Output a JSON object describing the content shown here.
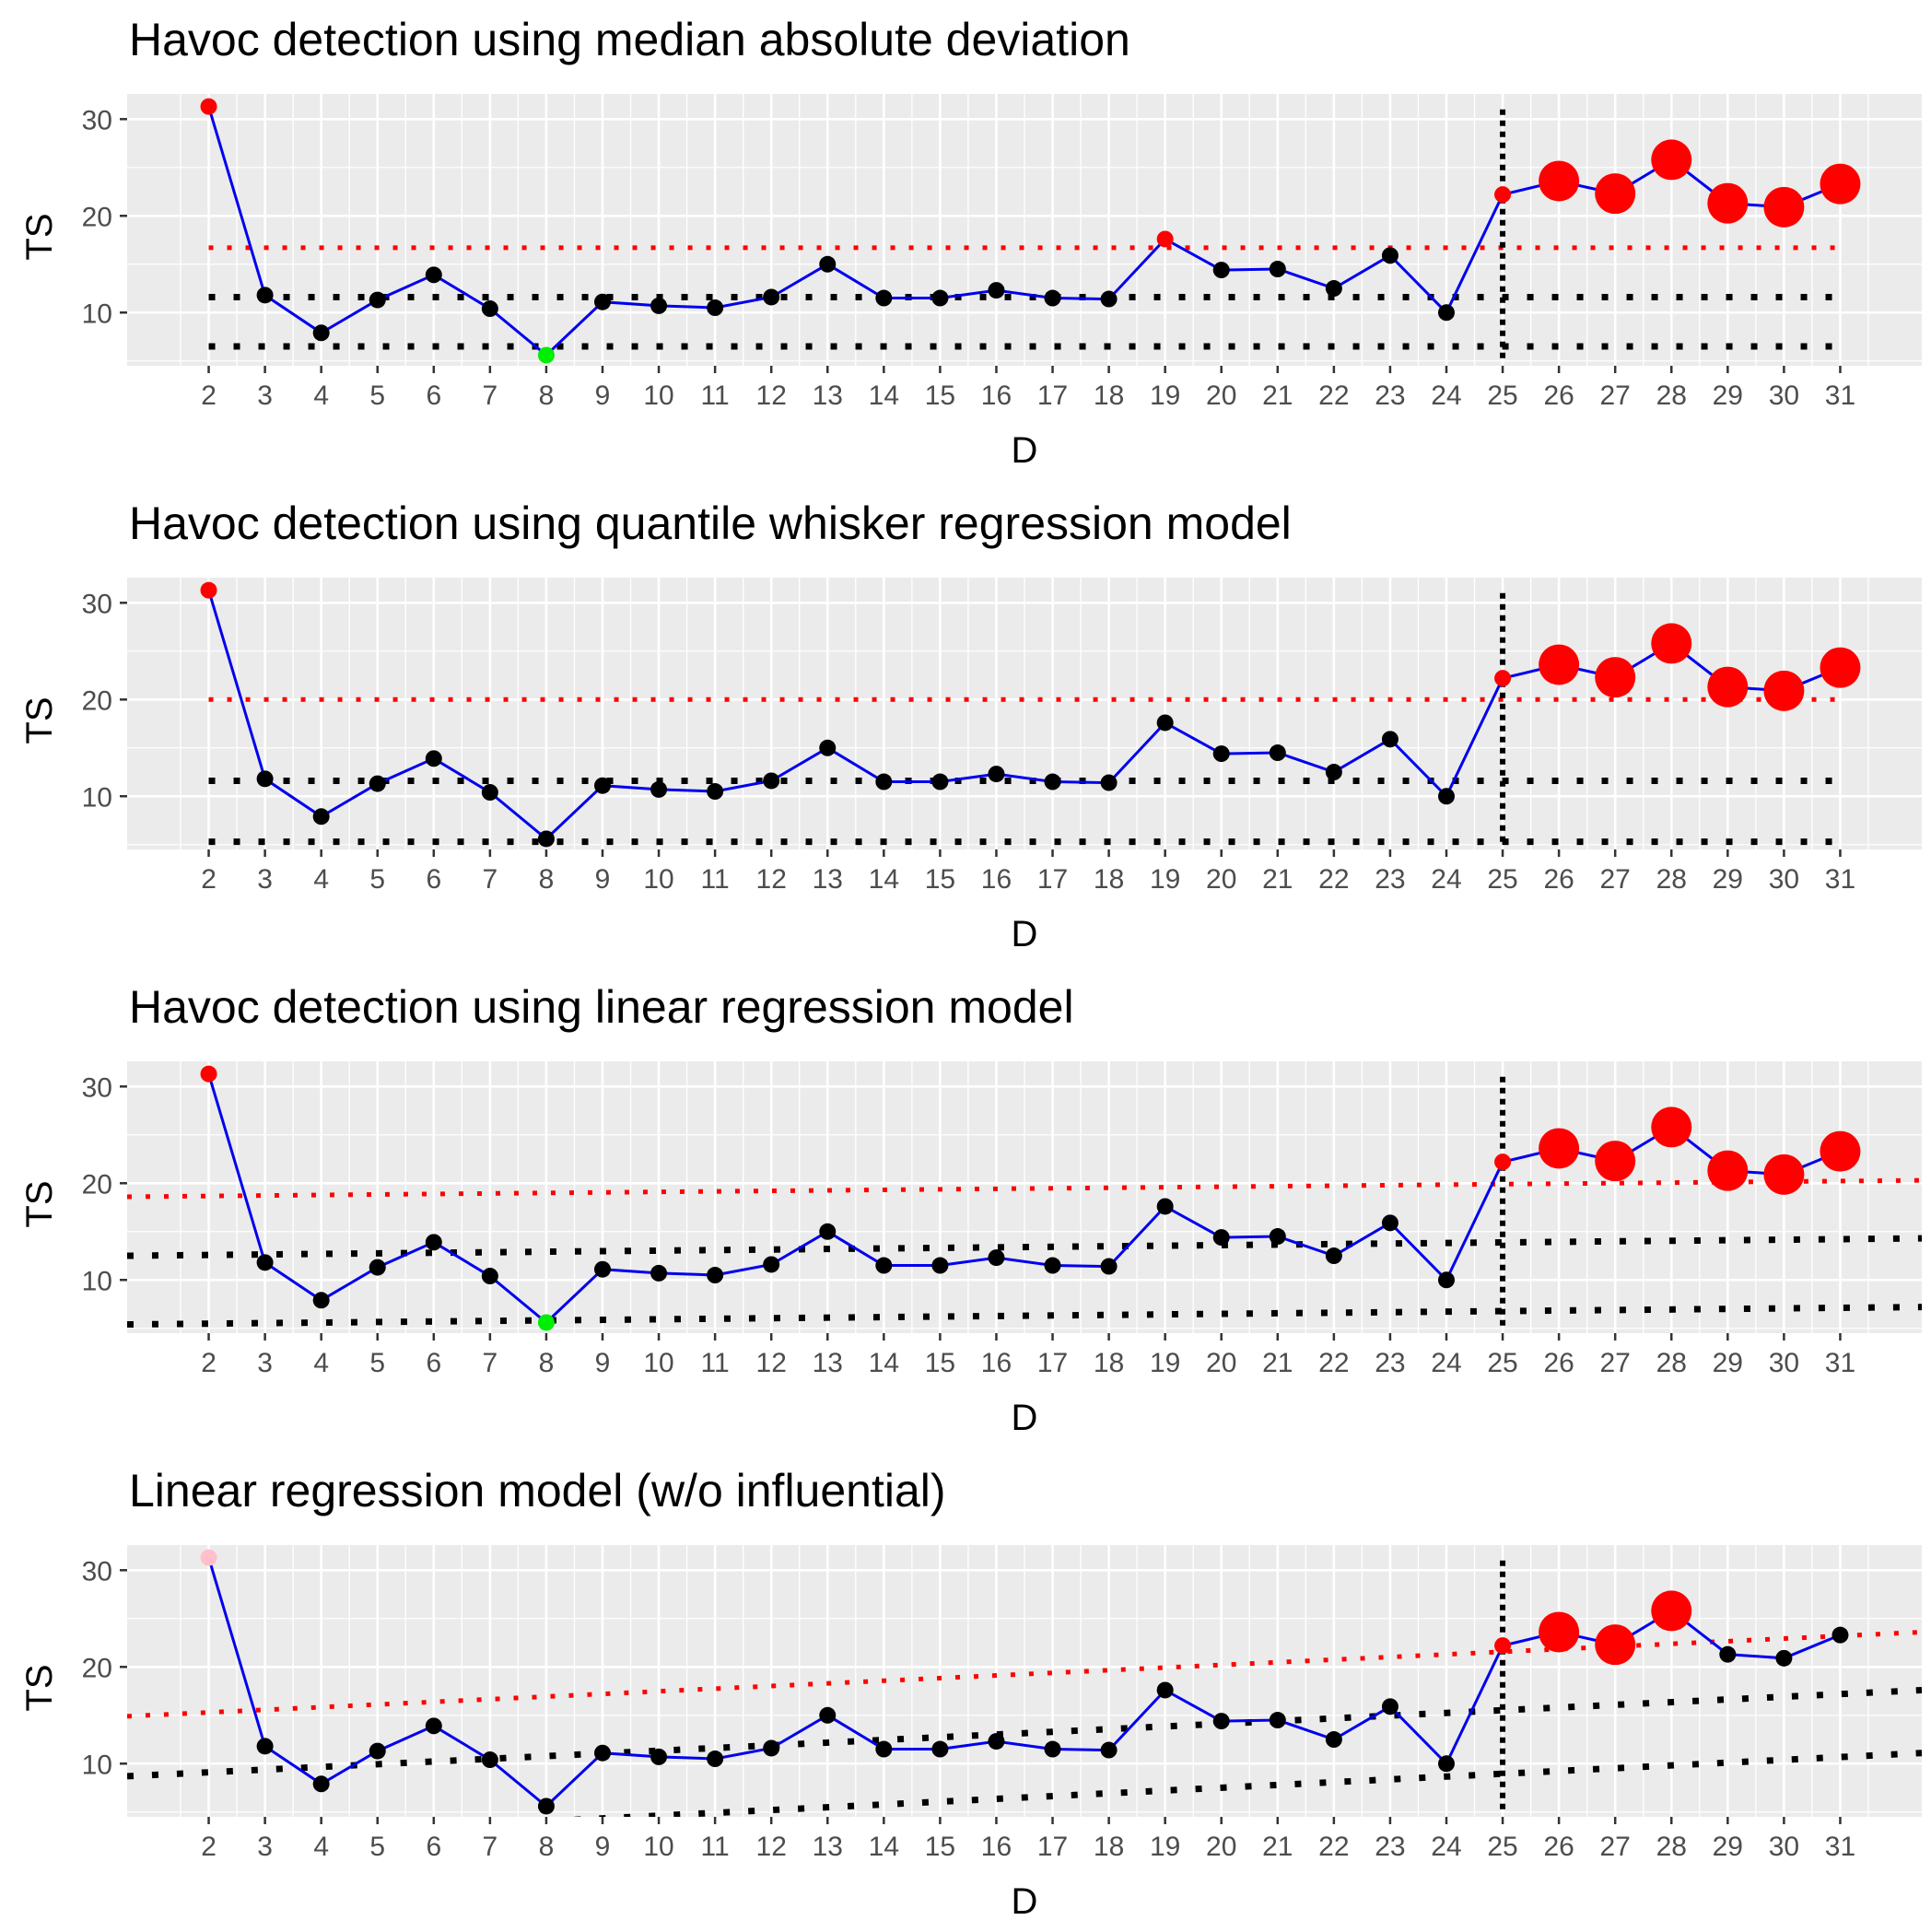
{
  "chart_data": [
    {
      "type": "line",
      "title": "Havoc detection using median absolute deviation",
      "xlabel": "D",
      "ylabel": "TS",
      "x_ticks": [
        2,
        3,
        4,
        5,
        6,
        7,
        8,
        9,
        10,
        11,
        12,
        13,
        14,
        15,
        16,
        17,
        18,
        19,
        20,
        21,
        22,
        23,
        24,
        25,
        26,
        27,
        28,
        29,
        30,
        31
      ],
      "y_ticks": [
        10,
        20,
        30
      ],
      "xlim": [
        0.55,
        32.45
      ],
      "ylim": [
        4.5,
        32.6
      ],
      "grid": true,
      "x": [
        2,
        3,
        4,
        5,
        6,
        7,
        8,
        9,
        10,
        11,
        12,
        13,
        14,
        15,
        16,
        17,
        18,
        19,
        20,
        21,
        22,
        23,
        24,
        25,
        26,
        27,
        28,
        29,
        30,
        31
      ],
      "y": [
        31.3,
        11.8,
        7.9,
        11.3,
        13.9,
        10.4,
        5.6,
        11.1,
        10.7,
        10.5,
        11.6,
        15.0,
        11.5,
        11.5,
        12.3,
        11.5,
        11.4,
        17.6,
        14.4,
        14.5,
        12.5,
        15.9,
        10.0,
        22.2,
        23.6,
        22.3,
        25.8,
        21.3,
        20.9,
        23.3
      ],
      "point_colors": [
        "red",
        "black",
        "black",
        "black",
        "black",
        "black",
        "green",
        "black",
        "black",
        "black",
        "black",
        "black",
        "black",
        "black",
        "black",
        "black",
        "black",
        "red",
        "black",
        "black",
        "black",
        "black",
        "black",
        "red",
        "red",
        "red",
        "red",
        "red",
        "red",
        "red"
      ],
      "large_points_x": [
        26,
        27,
        28,
        29,
        30,
        31
      ],
      "reference_lines": [
        {
          "color": "red",
          "x_from": 2,
          "x_to": 31,
          "y_from": 16.7,
          "y_to": 16.7
        },
        {
          "color": "black",
          "x_from": 2,
          "x_to": 31,
          "y_from": 11.6,
          "y_to": 11.6
        },
        {
          "color": "black",
          "x_from": 2,
          "x_to": 31,
          "y_from": 6.5,
          "y_to": 6.5
        }
      ],
      "vline_x": 25
    },
    {
      "type": "line",
      "title": "Havoc detection using quantile whisker regression model",
      "xlabel": "D",
      "ylabel": "TS",
      "x_ticks": [
        2,
        3,
        4,
        5,
        6,
        7,
        8,
        9,
        10,
        11,
        12,
        13,
        14,
        15,
        16,
        17,
        18,
        19,
        20,
        21,
        22,
        23,
        24,
        25,
        26,
        27,
        28,
        29,
        30,
        31
      ],
      "y_ticks": [
        10,
        20,
        30
      ],
      "xlim": [
        0.55,
        32.45
      ],
      "ylim": [
        4.5,
        32.6
      ],
      "grid": true,
      "x": [
        2,
        3,
        4,
        5,
        6,
        7,
        8,
        9,
        10,
        11,
        12,
        13,
        14,
        15,
        16,
        17,
        18,
        19,
        20,
        21,
        22,
        23,
        24,
        25,
        26,
        27,
        28,
        29,
        30,
        31
      ],
      "y": [
        31.3,
        11.8,
        7.9,
        11.3,
        13.9,
        10.4,
        5.6,
        11.1,
        10.7,
        10.5,
        11.6,
        15.0,
        11.5,
        11.5,
        12.3,
        11.5,
        11.4,
        17.6,
        14.4,
        14.5,
        12.5,
        15.9,
        10.0,
        22.2,
        23.6,
        22.3,
        25.8,
        21.3,
        20.9,
        23.3
      ],
      "point_colors": [
        "red",
        "black",
        "black",
        "black",
        "black",
        "black",
        "black",
        "black",
        "black",
        "black",
        "black",
        "black",
        "black",
        "black",
        "black",
        "black",
        "black",
        "black",
        "black",
        "black",
        "black",
        "black",
        "black",
        "red",
        "red",
        "red",
        "red",
        "red",
        "red",
        "red"
      ],
      "large_points_x": [
        26,
        27,
        28,
        29,
        30,
        31
      ],
      "reference_lines": [
        {
          "color": "red",
          "x_from": 2,
          "x_to": 31,
          "y_from": 20.0,
          "y_to": 20.0
        },
        {
          "color": "black",
          "x_from": 2,
          "x_to": 31,
          "y_from": 11.6,
          "y_to": 11.6
        },
        {
          "color": "black",
          "x_from": 2,
          "x_to": 31,
          "y_from": 5.3,
          "y_to": 5.3
        }
      ],
      "vline_x": 25
    },
    {
      "type": "line",
      "title": "Havoc detection using linear regression model",
      "xlabel": "D",
      "ylabel": "TS",
      "x_ticks": [
        2,
        3,
        4,
        5,
        6,
        7,
        8,
        9,
        10,
        11,
        12,
        13,
        14,
        15,
        16,
        17,
        18,
        19,
        20,
        21,
        22,
        23,
        24,
        25,
        26,
        27,
        28,
        29,
        30,
        31
      ],
      "y_ticks": [
        10,
        20,
        30
      ],
      "xlim": [
        0.55,
        32.45
      ],
      "ylim": [
        4.5,
        32.6
      ],
      "grid": true,
      "x": [
        2,
        3,
        4,
        5,
        6,
        7,
        8,
        9,
        10,
        11,
        12,
        13,
        14,
        15,
        16,
        17,
        18,
        19,
        20,
        21,
        22,
        23,
        24,
        25,
        26,
        27,
        28,
        29,
        30,
        31
      ],
      "y": [
        31.3,
        11.8,
        7.9,
        11.3,
        13.9,
        10.4,
        5.6,
        11.1,
        10.7,
        10.5,
        11.6,
        15.0,
        11.5,
        11.5,
        12.3,
        11.5,
        11.4,
        17.6,
        14.4,
        14.5,
        12.5,
        15.9,
        10.0,
        22.2,
        23.6,
        22.3,
        25.8,
        21.3,
        20.9,
        23.3
      ],
      "point_colors": [
        "red",
        "black",
        "black",
        "black",
        "black",
        "black",
        "green",
        "black",
        "black",
        "black",
        "black",
        "black",
        "black",
        "black",
        "black",
        "black",
        "black",
        "black",
        "black",
        "black",
        "black",
        "black",
        "black",
        "red",
        "red",
        "red",
        "red",
        "red",
        "red",
        "red"
      ],
      "large_points_x": [
        26,
        27,
        28,
        29,
        30,
        31
      ],
      "reference_lines": [
        {
          "color": "red",
          "x_from": 0.55,
          "x_to": 32.45,
          "y_from": 18.6,
          "y_to": 20.3
        },
        {
          "color": "black",
          "x_from": 0.55,
          "x_to": 32.45,
          "y_from": 12.5,
          "y_to": 14.3
        },
        {
          "color": "black",
          "x_from": 0.55,
          "x_to": 32.45,
          "y_from": 5.4,
          "y_to": 7.2
        }
      ],
      "vline_x": 25
    },
    {
      "type": "line",
      "title": "Linear regression model (w/o influential)",
      "xlabel": "D",
      "ylabel": "TS",
      "x_ticks": [
        2,
        3,
        4,
        5,
        6,
        7,
        8,
        9,
        10,
        11,
        12,
        13,
        14,
        15,
        16,
        17,
        18,
        19,
        20,
        21,
        22,
        23,
        24,
        25,
        26,
        27,
        28,
        29,
        30,
        31
      ],
      "y_ticks": [
        10,
        20,
        30
      ],
      "xlim": [
        0.55,
        32.45
      ],
      "ylim": [
        4.5,
        32.6
      ],
      "grid": true,
      "x": [
        2,
        3,
        4,
        5,
        6,
        7,
        8,
        9,
        10,
        11,
        12,
        13,
        14,
        15,
        16,
        17,
        18,
        19,
        20,
        21,
        22,
        23,
        24,
        25,
        26,
        27,
        28,
        29,
        30,
        31
      ],
      "y": [
        31.3,
        11.8,
        7.9,
        11.3,
        13.9,
        10.4,
        5.6,
        11.1,
        10.7,
        10.5,
        11.6,
        15.0,
        11.5,
        11.5,
        12.3,
        11.5,
        11.4,
        17.6,
        14.4,
        14.5,
        12.5,
        15.9,
        10.0,
        22.2,
        23.6,
        22.3,
        25.8,
        21.3,
        20.9,
        23.3
      ],
      "point_colors": [
        "pink",
        "black",
        "black",
        "black",
        "black",
        "black",
        "black",
        "black",
        "black",
        "black",
        "black",
        "black",
        "black",
        "black",
        "black",
        "black",
        "black",
        "black",
        "black",
        "black",
        "black",
        "black",
        "black",
        "red",
        "red",
        "red",
        "red",
        "black",
        "black",
        "black"
      ],
      "large_points_x": [
        26,
        27,
        28
      ],
      "reference_lines": [
        {
          "color": "red",
          "x_from": 0.55,
          "x_to": 32.45,
          "y_from": 14.9,
          "y_to": 23.6
        },
        {
          "color": "black",
          "x_from": 0.55,
          "x_to": 32.45,
          "y_from": 8.7,
          "y_to": 17.6
        },
        {
          "color": "black",
          "x_from": 0.55,
          "x_to": 32.45,
          "y_from": 1.9,
          "y_to": 11.1
        }
      ],
      "vline_x": 25
    }
  ],
  "colors": {
    "panel_bg": "#ebebeb",
    "grid": "#ffffff",
    "series_line": "#0000ee",
    "red": "#ff0000",
    "black": "#000000",
    "green": "#00ee00",
    "pink": "#ffc0cb",
    "tick_text": "#4d4d4d"
  }
}
